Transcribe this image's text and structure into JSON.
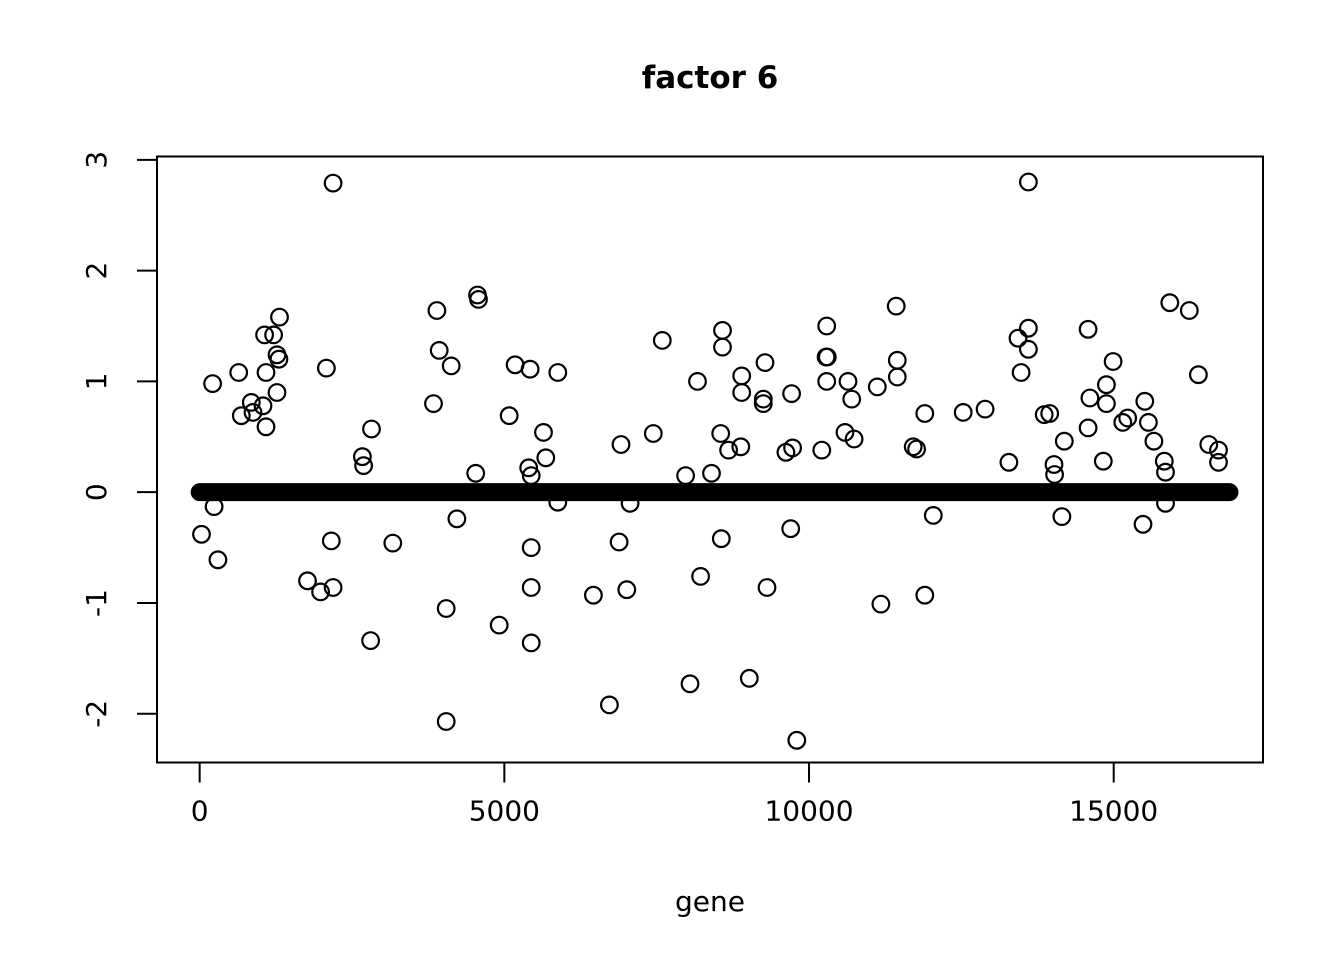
{
  "chart_data": {
    "type": "scatter",
    "title": "factor 6",
    "xlabel": "gene",
    "ylabel": "",
    "xlim": [
      -700,
      17450
    ],
    "ylim": [
      -2.44,
      3.03
    ],
    "x_ticks": [
      0,
      5000,
      10000,
      15000
    ],
    "y_ticks": [
      -2,
      -1,
      0,
      1,
      2,
      3
    ],
    "grid": false,
    "legend": "none",
    "marker": "open-circle",
    "marker_color": "#000000",
    "zero_band": {
      "y": 0,
      "x_start": 0,
      "x_end": 16900
    },
    "points": [
      [
        213,
        0.98
      ],
      [
        2190,
        2.79
      ],
      [
        1310,
        1.58
      ],
      [
        1066,
        1.42
      ],
      [
        1214,
        1.42
      ],
      [
        1270,
        1.24
      ],
      [
        1300,
        1.2
      ],
      [
        640,
        1.08
      ],
      [
        2080,
        1.12
      ],
      [
        1089,
        1.08
      ],
      [
        1269,
        0.9
      ],
      [
        848,
        0.81
      ],
      [
        1040,
        0.78
      ],
      [
        876,
        0.72
      ],
      [
        684,
        0.69
      ],
      [
        1089,
        0.59
      ],
      [
        2820,
        0.57
      ],
      [
        2670,
        0.32
      ],
      [
        2690,
        0.24
      ],
      [
        237,
        -0.13
      ],
      [
        30,
        -0.38
      ],
      [
        300,
        -0.61
      ],
      [
        2160,
        -0.44
      ],
      [
        3170,
        -0.46
      ],
      [
        1770,
        -0.8
      ],
      [
        1985,
        -0.9
      ],
      [
        2190,
        -0.86
      ],
      [
        2805,
        -1.34
      ],
      [
        4046,
        -1.05
      ],
      [
        4046,
        -2.07
      ],
      [
        4559,
        1.78
      ],
      [
        4576,
        1.74
      ],
      [
        3893,
        1.64
      ],
      [
        3931,
        1.28
      ],
      [
        4128,
        1.14
      ],
      [
        3838,
        0.8
      ],
      [
        5177,
        1.15
      ],
      [
        5423,
        1.11
      ],
      [
        5877,
        1.08
      ],
      [
        5079,
        0.69
      ],
      [
        5642,
        0.54
      ],
      [
        6915,
        0.43
      ],
      [
        7445,
        0.53
      ],
      [
        7593,
        1.37
      ],
      [
        4530,
        0.17
      ],
      [
        5400,
        0.22
      ],
      [
        5440,
        0.15
      ],
      [
        5680,
        0.31
      ],
      [
        5877,
        -0.09
      ],
      [
        7063,
        -0.1
      ],
      [
        7975,
        0.15
      ],
      [
        8400,
        0.17
      ],
      [
        4222,
        -0.24
      ],
      [
        5440,
        -0.5
      ],
      [
        6884,
        -0.45
      ],
      [
        5440,
        -0.86
      ],
      [
        6462,
        -0.93
      ],
      [
        7010,
        -0.88
      ],
      [
        4915,
        -1.2
      ],
      [
        5440,
        -1.36
      ],
      [
        6724,
        -1.92
      ],
      [
        8046,
        -1.73
      ],
      [
        11430,
        1.68
      ],
      [
        8580,
        1.46
      ],
      [
        8580,
        1.31
      ],
      [
        10290,
        1.5
      ],
      [
        10280,
        1.22
      ],
      [
        10300,
        1.22
      ],
      [
        9277,
        1.17
      ],
      [
        8895,
        1.05
      ],
      [
        11448,
        1.19
      ],
      [
        11448,
        1.04
      ],
      [
        10290,
        1.0
      ],
      [
        10640,
        1.0
      ],
      [
        8895,
        0.9
      ],
      [
        9250,
        0.84
      ],
      [
        9250,
        0.8
      ],
      [
        9714,
        0.89
      ],
      [
        8170,
        1.0
      ],
      [
        11120,
        0.95
      ],
      [
        10700,
        0.84
      ],
      [
        11900,
        0.71
      ],
      [
        12530,
        0.72
      ],
      [
        12890,
        0.75
      ],
      [
        8550,
        0.53
      ],
      [
        8680,
        0.38
      ],
      [
        8880,
        0.41
      ],
      [
        9620,
        0.36
      ],
      [
        9730,
        0.4
      ],
      [
        10210,
        0.38
      ],
      [
        10590,
        0.54
      ],
      [
        10740,
        0.48
      ],
      [
        11710,
        0.41
      ],
      [
        11765,
        0.39
      ],
      [
        12040,
        -0.21
      ],
      [
        9700,
        -0.33
      ],
      [
        8560,
        -0.42
      ],
      [
        8220,
        -0.76
      ],
      [
        9310,
        -0.86
      ],
      [
        11180,
        -1.01
      ],
      [
        11900,
        -0.93
      ],
      [
        9020,
        -1.68
      ],
      [
        9800,
        -2.24
      ],
      [
        13600,
        2.8
      ],
      [
        15920,
        1.71
      ],
      [
        16240,
        1.64
      ],
      [
        13600,
        1.48
      ],
      [
        13430,
        1.39
      ],
      [
        13600,
        1.29
      ],
      [
        14580,
        1.47
      ],
      [
        14990,
        1.18
      ],
      [
        13480,
        1.08
      ],
      [
        16390,
        1.06
      ],
      [
        14880,
        0.97
      ],
      [
        14880,
        0.8
      ],
      [
        14610,
        0.85
      ],
      [
        13860,
        0.7
      ],
      [
        13950,
        0.71
      ],
      [
        15510,
        0.82
      ],
      [
        15230,
        0.67
      ],
      [
        15150,
        0.63
      ],
      [
        15570,
        0.63
      ],
      [
        14580,
        0.58
      ],
      [
        14190,
        0.46
      ],
      [
        15660,
        0.46
      ],
      [
        16560,
        0.43
      ],
      [
        16720,
        0.38
      ],
      [
        16720,
        0.27
      ],
      [
        13280,
        0.27
      ],
      [
        14020,
        0.25
      ],
      [
        14030,
        0.16
      ],
      [
        14830,
        0.28
      ],
      [
        15830,
        0.28
      ],
      [
        15850,
        0.18
      ],
      [
        15850,
        -0.1
      ],
      [
        14150,
        -0.22
      ],
      [
        15480,
        -0.29
      ]
    ]
  }
}
